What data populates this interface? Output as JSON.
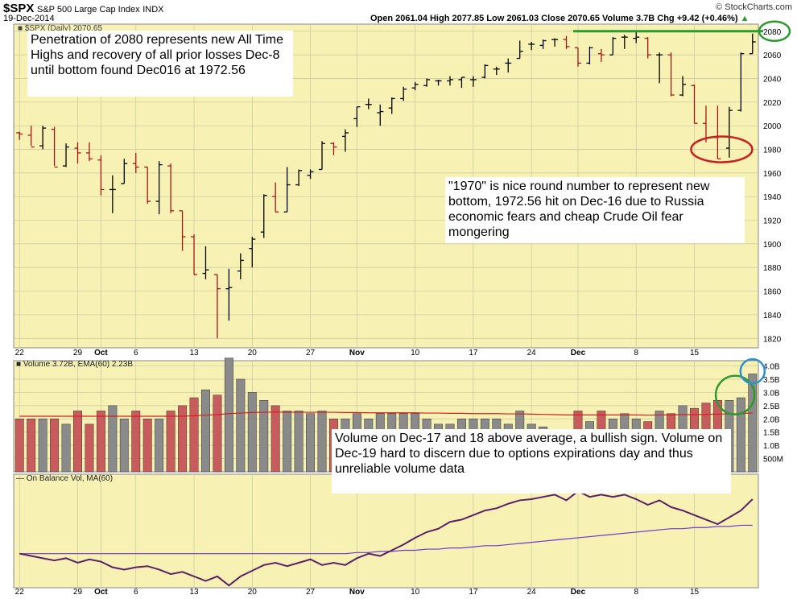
{
  "header": {
    "symbol": "$SPX",
    "name": "S&P 500 Large Cap Index",
    "exchange": "INDX",
    "date": "19-Dec-2014",
    "credit": "© StockCharts.com",
    "quote": "Open 2061.04  High 2077.85  Low 2061.03  Close 2070.65  Volume 3.7B  Chg +9.42 (+0.46%)",
    "quote_dir": "▲",
    "price_legend": "■ $SPX (Daily) 2070.65",
    "volume_legend": "■ Volume 3.72B, EMA(60) 2.23B",
    "obv_legend": "— On Balance Vol, MA(60)"
  },
  "annotations": {
    "top_note": "Penetration of 2080 represents new All Time Highs and recovery of all prior losses Dec-8 until bottom found Dec016 at 1972.56",
    "mid_note": "\"1970\" is nice round number to represent new bottom, 1972.56 hit on Dec-16 due to Russia economic fears and cheap Crude Oil fear mongering",
    "vol_note": "Volume on Dec-17 and 18 above average, a bullish sign.  Volume on Dec-19 hard to discern due to options expirations day and thus unreliable volume data"
  },
  "colors": {
    "panel_bg": "#f7f2b4",
    "grid": "#c9c5a1",
    "up": "#000000",
    "down": "#a31515",
    "vol_up": "#8a8a8a",
    "vol_down": "#c85b5b",
    "ema": "#d42020",
    "obv": "#5a2266",
    "obv_ma": "#6a3acd",
    "resistance": "#2d9a2d",
    "circle_red": "#c62020",
    "circle_green": "#2d9a2d",
    "circle_blue": "#2e90d0"
  },
  "chart_data": {
    "type": "ohlc",
    "title": "S&P 500 Large Cap Index (Daily)",
    "y_ticks": [
      1820,
      1840,
      1860,
      1880,
      1900,
      1920,
      1940,
      1960,
      1980,
      2000,
      2020,
      2040,
      2060,
      2080
    ],
    "ylim": [
      1812,
      2086
    ],
    "x_tick_labels": [
      "22",
      "29",
      "Oct",
      "6",
      "13",
      "20",
      "27",
      "Nov",
      "10",
      "17",
      "24",
      "Dec",
      "8",
      "15"
    ],
    "x_tick_index": [
      0,
      5,
      7,
      10,
      15,
      20,
      25,
      29,
      34,
      39,
      44,
      48,
      53,
      58
    ],
    "resistance_level": 2080,
    "ohlc": [
      [
        1994,
        1995,
        1988,
        1993
      ],
      [
        1992,
        2000,
        1983,
        1982
      ],
      [
        1983,
        2000,
        1980,
        1998
      ],
      [
        1997,
        1999,
        1966,
        1965
      ],
      [
        1966,
        1985,
        1965,
        1982
      ],
      [
        1981,
        1986,
        1968,
        1977
      ],
      [
        1977,
        1986,
        1970,
        1972
      ],
      [
        1971,
        1975,
        1941,
        1946
      ],
      [
        1946,
        1958,
        1926,
        1946
      ],
      [
        1951,
        1972,
        1951,
        1968
      ],
      [
        1968,
        1977,
        1960,
        1965
      ],
      [
        1965,
        1965,
        1934,
        1936
      ],
      [
        1936,
        1970,
        1925,
        1967
      ],
      [
        1966,
        1968,
        1926,
        1928
      ],
      [
        1928,
        1928,
        1894,
        1906
      ],
      [
        1906,
        1908,
        1874,
        1874
      ],
      [
        1875,
        1898,
        1870,
        1878
      ],
      [
        1874,
        1874,
        1820,
        1862
      ],
      [
        1862,
        1879,
        1835,
        1863
      ],
      [
        1877,
        1892,
        1870,
        1886
      ],
      [
        1896,
        1906,
        1880,
        1904
      ],
      [
        1910,
        1942,
        1905,
        1941
      ],
      [
        1940,
        1952,
        1927,
        1927
      ],
      [
        1927,
        1965,
        1927,
        1950
      ],
      [
        1950,
        1963,
        1949,
        1962
      ],
      [
        1958,
        1963,
        1955,
        1961
      ],
      [
        1963,
        1987,
        1963,
        1985
      ],
      [
        1985,
        1986,
        1975,
        1982
      ],
      [
        1991,
        1997,
        1978,
        1994
      ],
      [
        2006,
        2016,
        1999,
        2016
      ],
      [
        2018,
        2023,
        2014,
        2018
      ],
      [
        2011,
        2018,
        2000,
        2012
      ],
      [
        2015,
        2024,
        2010,
        2023
      ],
      [
        2023,
        2033,
        2021,
        2031
      ],
      [
        2032,
        2037,
        2030,
        2035
      ],
      [
        2034,
        2040,
        2033,
        2039
      ],
      [
        2038,
        2039,
        2034,
        2038
      ],
      [
        2038,
        2042,
        2034,
        2039
      ],
      [
        2039,
        2041,
        2032,
        2041
      ],
      [
        2039,
        2042,
        2033,
        2039
      ],
      [
        2041,
        2052,
        2040,
        2051
      ],
      [
        2048,
        2050,
        2043,
        2048
      ],
      [
        2053,
        2057,
        2045,
        2053
      ],
      [
        2057,
        2072,
        2057,
        2063
      ],
      [
        2069,
        2071,
        2064,
        2069
      ],
      [
        2068,
        2073,
        2065,
        2072
      ],
      [
        2073,
        2074,
        2067,
        2073
      ],
      [
        2073,
        2076,
        2065,
        2067
      ],
      [
        2066,
        2066,
        2050,
        2053
      ],
      [
        2053,
        2067,
        2052,
        2066
      ],
      [
        2061,
        2065,
        2054,
        2060
      ],
      [
        2060,
        2075,
        2060,
        2074
      ],
      [
        2075,
        2077,
        2065,
        2075
      ],
      [
        2074,
        2080,
        2070,
        2075
      ],
      [
        2074,
        2075,
        2057,
        2060
      ],
      [
        2060,
        2062,
        2036,
        2060
      ],
      [
        2060,
        2062,
        2025,
        2026
      ],
      [
        2026,
        2042,
        2025,
        2035
      ],
      [
        2034,
        2035,
        2002,
        2002
      ],
      [
        2002,
        2017,
        1986,
        1990
      ],
      [
        1990,
        2017,
        1972,
        1972
      ],
      [
        1981,
        2016,
        1973,
        2013
      ],
      [
        2013,
        2062,
        2012,
        2061
      ],
      [
        2061,
        2078,
        2061,
        2071
      ]
    ],
    "volume_ticks": [
      "500M",
      "1.0B",
      "1.5B",
      "2.0B",
      "2.5B",
      "3.0B",
      "3.5B",
      "4.0B"
    ],
    "volume_tick_values": [
      0.5,
      1.0,
      1.5,
      2.0,
      2.5,
      3.0,
      3.5,
      4.0
    ],
    "volume_ylim": [
      0,
      4.2
    ],
    "volume": [
      2.0,
      2.0,
      2.0,
      2.0,
      1.8,
      2.3,
      1.8,
      2.3,
      2.5,
      2.0,
      2.3,
      2.0,
      2.0,
      2.3,
      2.5,
      2.8,
      3.1,
      2.9,
      4.3,
      3.5,
      3.0,
      2.7,
      2.5,
      2.3,
      2.3,
      2.2,
      2.3,
      2.0,
      2.0,
      2.2,
      2.0,
      2.2,
      2.2,
      2.2,
      2.2,
      2.0,
      1.8,
      1.8,
      2.0,
      2.0,
      2.0,
      2.0,
      1.8,
      2.3,
      1.8,
      1.7,
      1.5,
      1.6,
      2.3,
      1.9,
      2.3,
      2.0,
      2.2,
      2.0,
      1.9,
      2.3,
      2.2,
      2.5,
      2.4,
      2.6,
      2.7,
      2.7,
      2.8,
      3.7
    ],
    "volume_ema": [
      2.1,
      2.1,
      2.1,
      2.1,
      2.1,
      2.1,
      2.1,
      2.1,
      2.1,
      2.1,
      2.1,
      2.1,
      2.1,
      2.1,
      2.1,
      2.12,
      2.14,
      2.16,
      2.2,
      2.22,
      2.24,
      2.25,
      2.26,
      2.25,
      2.25,
      2.25,
      2.25,
      2.25,
      2.24,
      2.24,
      2.23,
      2.23,
      2.23,
      2.23,
      2.23,
      2.22,
      2.22,
      2.21,
      2.21,
      2.2,
      2.2,
      2.2,
      2.19,
      2.19,
      2.18,
      2.17,
      2.16,
      2.15,
      2.15,
      2.15,
      2.15,
      2.15,
      2.15,
      2.15,
      2.14,
      2.15,
      2.15,
      2.16,
      2.16,
      2.17,
      2.18,
      2.19,
      2.2,
      2.23
    ],
    "obv": [
      -10,
      -12,
      -14,
      -16,
      -14,
      -18,
      -15,
      -17,
      -22,
      -24,
      -22,
      -21,
      -24,
      -28,
      -26,
      -30,
      -34,
      -30,
      -38,
      -30,
      -25,
      -20,
      -18,
      -21,
      -18,
      -15,
      -20,
      -18,
      -20,
      -14,
      -10,
      -12,
      -7,
      -2,
      4,
      9,
      12,
      18,
      20,
      24,
      28,
      30,
      34,
      37,
      38,
      40,
      42,
      37,
      45,
      40,
      42,
      40,
      42,
      38,
      33,
      37,
      31,
      28,
      24,
      20,
      16,
      22,
      28,
      38
    ],
    "obv_ma": [
      -10,
      -10,
      -10,
      -10,
      -10,
      -10,
      -10,
      -10,
      -10,
      -10,
      -10,
      -10,
      -10,
      -10,
      -10,
      -10,
      -10,
      -10,
      -10,
      -10,
      -10,
      -10,
      -10,
      -10,
      -10,
      -10,
      -10,
      -10,
      -10,
      -9,
      -9,
      -8,
      -8,
      -7,
      -7,
      -6,
      -6,
      -5,
      -5,
      -4,
      -3,
      -3,
      -2,
      -1,
      0,
      1,
      2,
      3,
      4,
      5,
      6,
      7,
      8,
      9,
      10,
      11,
      12,
      12,
      13,
      13,
      14,
      14,
      15,
      15
    ],
    "obv_ylim": [
      -40,
      60
    ]
  }
}
